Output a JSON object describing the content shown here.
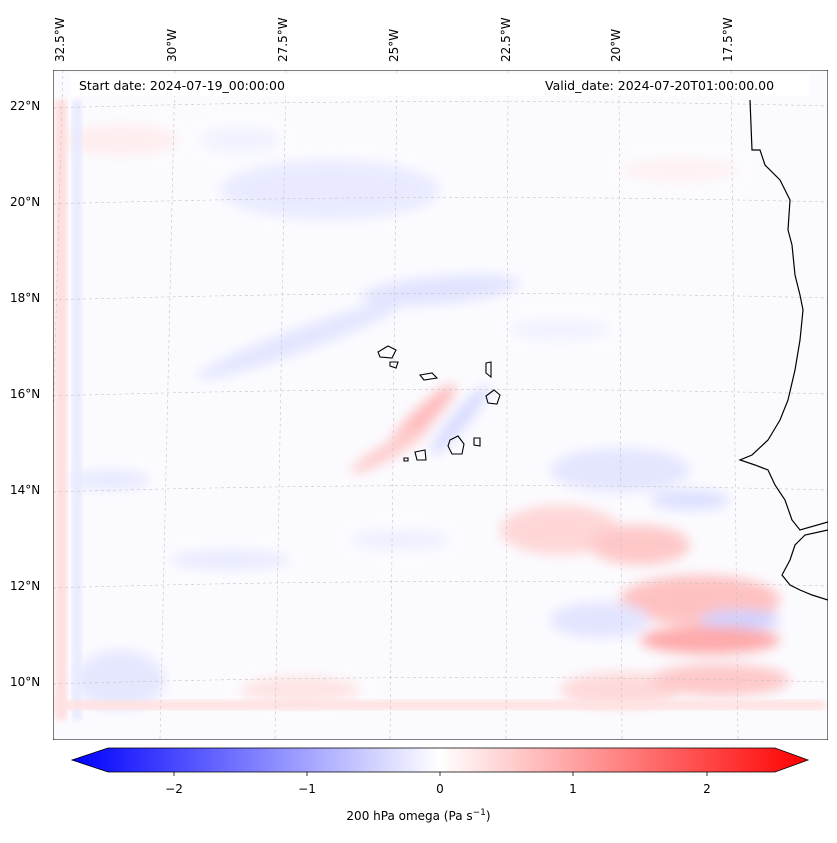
{
  "map": {
    "start_label": "Start date: 2024-07-19_00:00:00",
    "valid_label": "Valid_date: 2024-07-20T01:00:00.00",
    "lon_ticks": [
      "32.5°W",
      "30°W",
      "27.5°W",
      "25°W",
      "22.5°W",
      "20°W",
      "17.5°W"
    ],
    "lat_ticks": [
      "22°N",
      "20°N",
      "18°N",
      "16°N",
      "14°N",
      "12°N",
      "10°N"
    ],
    "field": "200 hPa omega",
    "colorbar": {
      "label": "200 hPa omega (Pa s",
      "label_sup": "−1",
      "label_end": ")",
      "ticks": [
        "−2",
        "−1",
        "0",
        "1",
        "2"
      ],
      "range": [
        -2.5,
        2.5
      ],
      "colormap": "bwr",
      "extend": "both",
      "low_color": "#0000ff",
      "mid_color": "#ffffff",
      "high_color": "#ff0000"
    },
    "features": [
      "coastline-west-africa",
      "cape-verde-islands"
    ]
  }
}
